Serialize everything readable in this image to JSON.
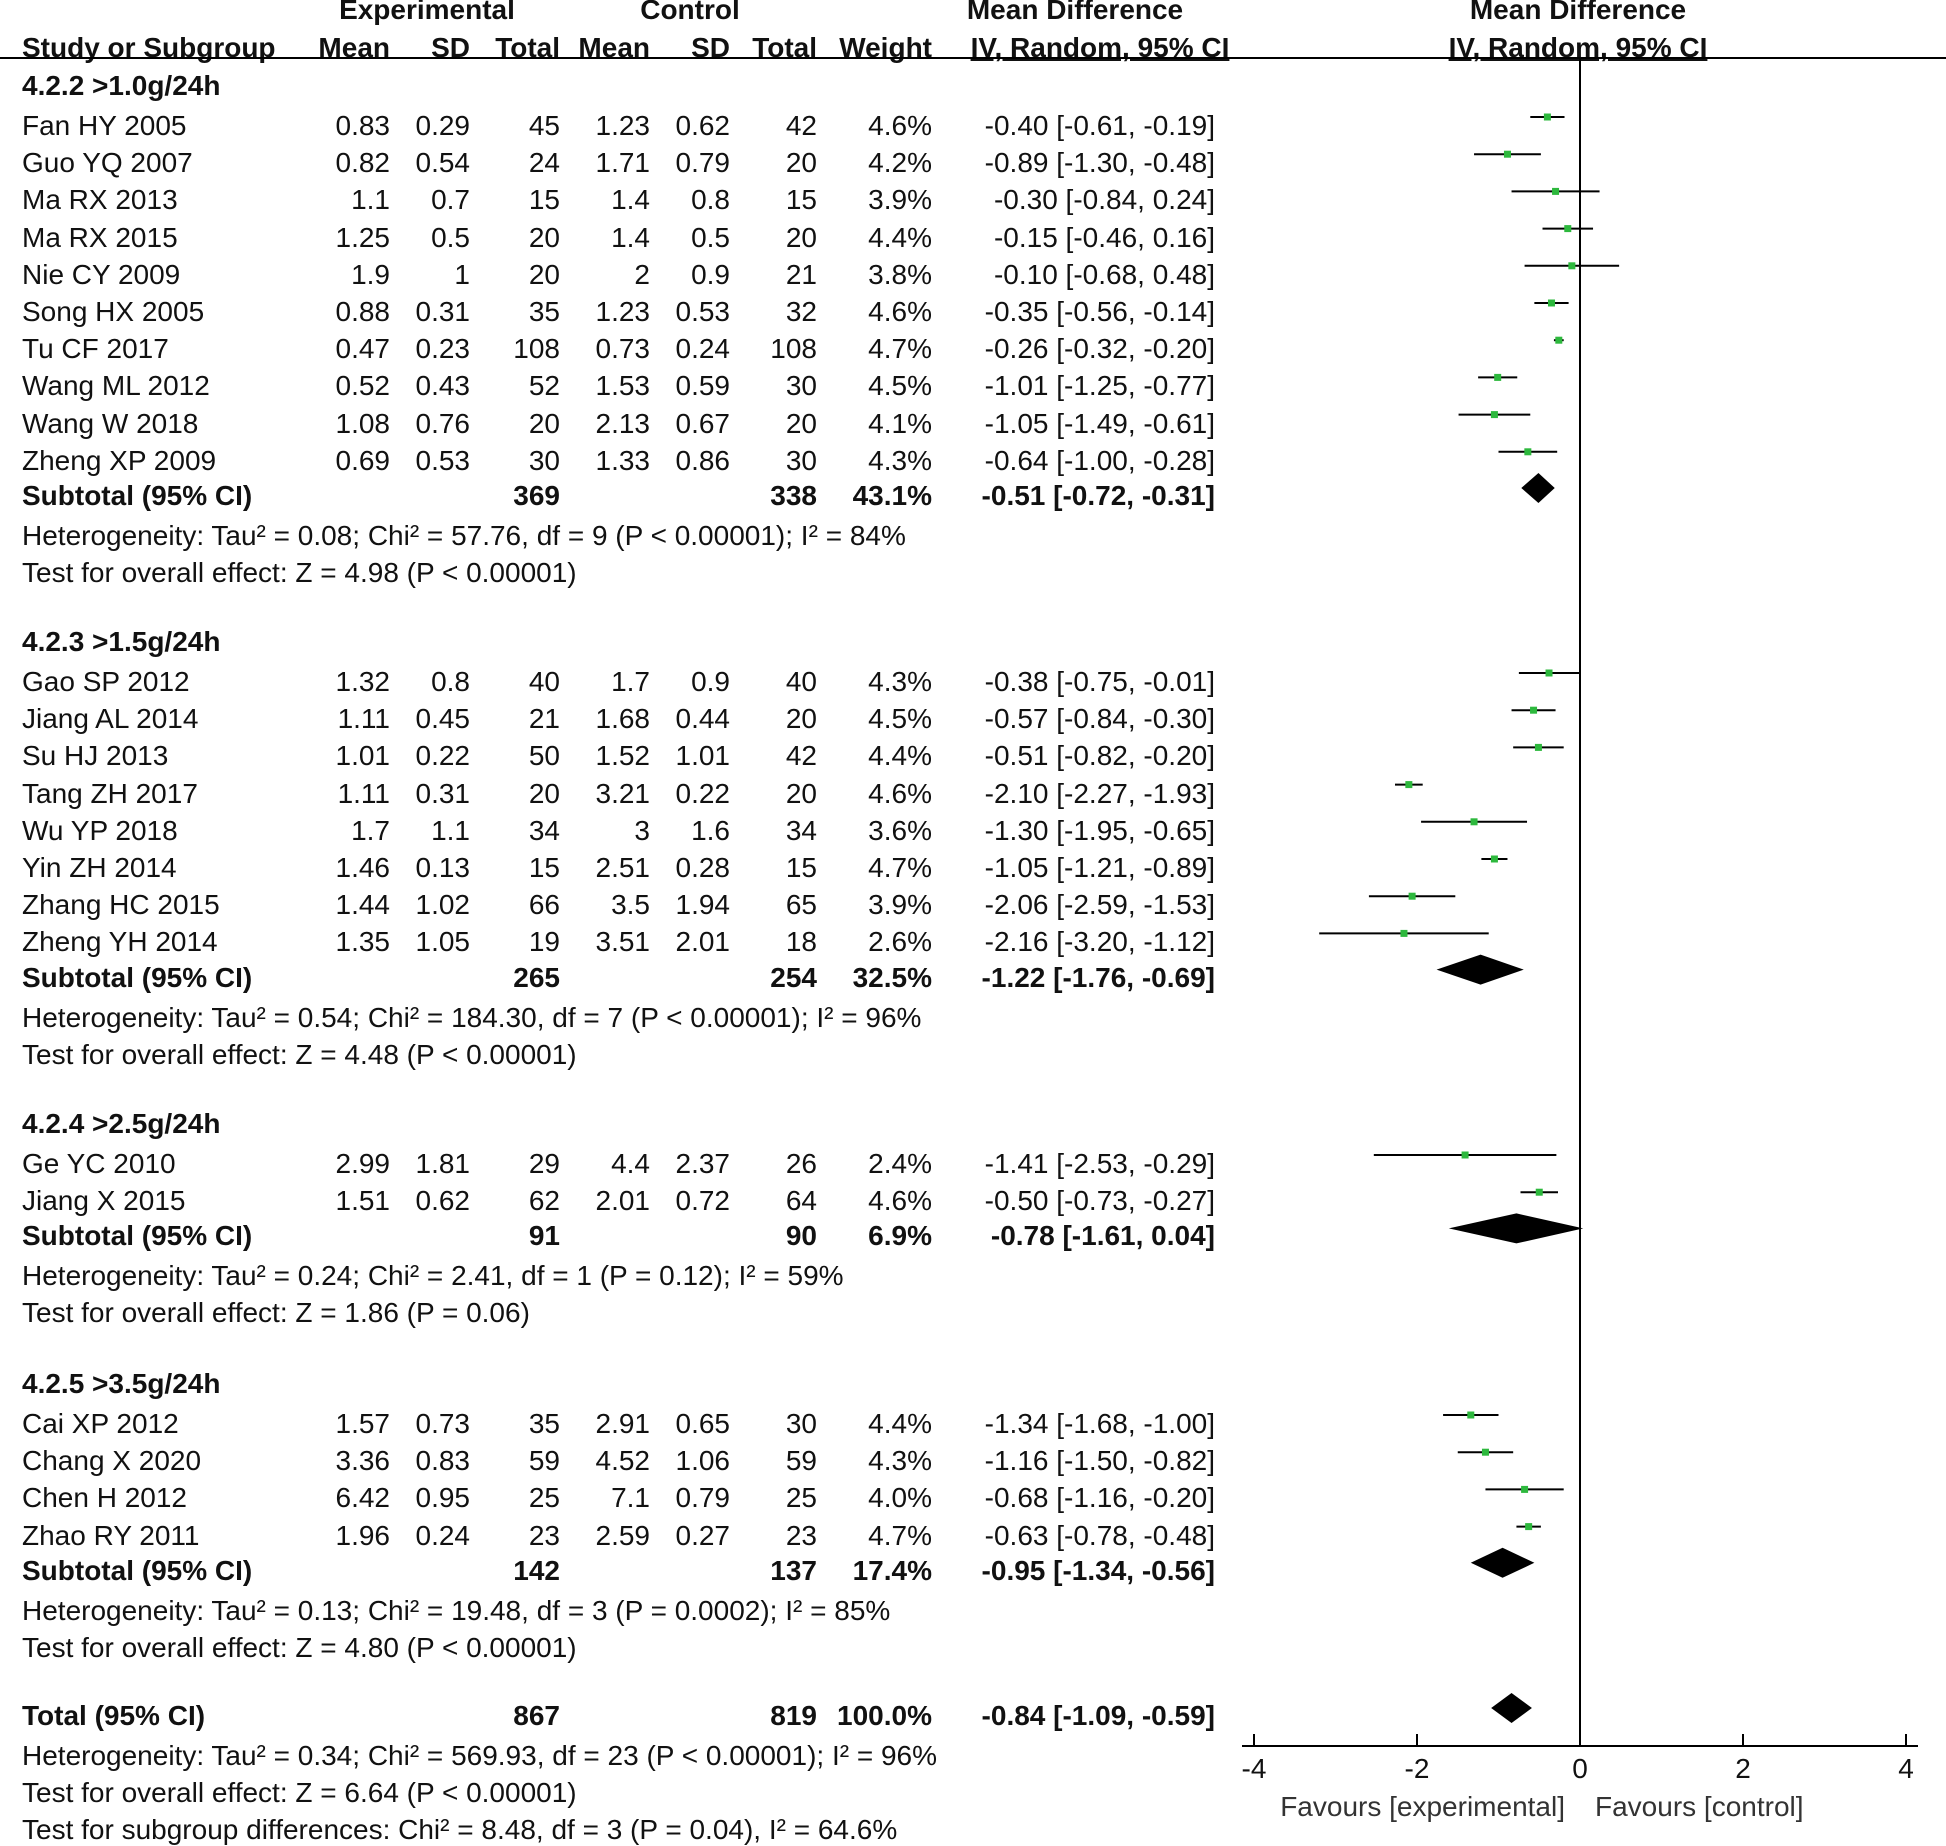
{
  "headers": {
    "experimental": "Experimental",
    "control": "Control",
    "mean_difference": "Mean Difference",
    "mean_difference_plot": "Mean Difference",
    "study_or_subgroup": "Study or Subgroup",
    "mean_e": "Mean",
    "sd_e": "SD",
    "total_e": "Total",
    "mean_c": "Mean",
    "sd_c": "SD",
    "total_c": "Total",
    "weight": "Weight",
    "method": "IV, Random, 95% CI",
    "method_plot": "IV, Random, 95% CI"
  },
  "subgroups": [
    {
      "title": "4.2.2 >1.0g/24h",
      "studies": [
        {
          "name": "Fan HY 2005",
          "mean_e": "0.83",
          "sd_e": "0.29",
          "total_e": "45",
          "mean_c": "1.23",
          "sd_c": "0.62",
          "total_c": "42",
          "weight": "4.6%",
          "ci": "-0.40 [-0.61, -0.19]",
          "md": -0.4,
          "lo": -0.61,
          "hi": -0.19
        },
        {
          "name": "Guo YQ 2007",
          "mean_e": "0.82",
          "sd_e": "0.54",
          "total_e": "24",
          "mean_c": "1.71",
          "sd_c": "0.79",
          "total_c": "20",
          "weight": "4.2%",
          "ci": "-0.89 [-1.30, -0.48]",
          "md": -0.89,
          "lo": -1.3,
          "hi": -0.48
        },
        {
          "name": "Ma RX 2013",
          "mean_e": "1.1",
          "sd_e": "0.7",
          "total_e": "15",
          "mean_c": "1.4",
          "sd_c": "0.8",
          "total_c": "15",
          "weight": "3.9%",
          "ci": "-0.30 [-0.84, 0.24]",
          "md": -0.3,
          "lo": -0.84,
          "hi": 0.24
        },
        {
          "name": "Ma RX 2015",
          "mean_e": "1.25",
          "sd_e": "0.5",
          "total_e": "20",
          "mean_c": "1.4",
          "sd_c": "0.5",
          "total_c": "20",
          "weight": "4.4%",
          "ci": "-0.15 [-0.46, 0.16]",
          "md": -0.15,
          "lo": -0.46,
          "hi": 0.16
        },
        {
          "name": "Nie CY 2009",
          "mean_e": "1.9",
          "sd_e": "1",
          "total_e": "20",
          "mean_c": "2",
          "sd_c": "0.9",
          "total_c": "21",
          "weight": "3.8%",
          "ci": "-0.10 [-0.68, 0.48]",
          "md": -0.1,
          "lo": -0.68,
          "hi": 0.48
        },
        {
          "name": "Song HX 2005",
          "mean_e": "0.88",
          "sd_e": "0.31",
          "total_e": "35",
          "mean_c": "1.23",
          "sd_c": "0.53",
          "total_c": "32",
          "weight": "4.6%",
          "ci": "-0.35 [-0.56, -0.14]",
          "md": -0.35,
          "lo": -0.56,
          "hi": -0.14
        },
        {
          "name": "Tu CF 2017",
          "mean_e": "0.47",
          "sd_e": "0.23",
          "total_e": "108",
          "mean_c": "0.73",
          "sd_c": "0.24",
          "total_c": "108",
          "weight": "4.7%",
          "ci": "-0.26 [-0.32, -0.20]",
          "md": -0.26,
          "lo": -0.32,
          "hi": -0.2
        },
        {
          "name": "Wang ML 2012",
          "mean_e": "0.52",
          "sd_e": "0.43",
          "total_e": "52",
          "mean_c": "1.53",
          "sd_c": "0.59",
          "total_c": "30",
          "weight": "4.5%",
          "ci": "-1.01 [-1.25, -0.77]",
          "md": -1.01,
          "lo": -1.25,
          "hi": -0.77
        },
        {
          "name": "Wang W 2018",
          "mean_e": "1.08",
          "sd_e": "0.76",
          "total_e": "20",
          "mean_c": "2.13",
          "sd_c": "0.67",
          "total_c": "20",
          "weight": "4.1%",
          "ci": "-1.05 [-1.49, -0.61]",
          "md": -1.05,
          "lo": -1.49,
          "hi": -0.61
        },
        {
          "name": "Zheng XP  2009",
          "mean_e": "0.69",
          "sd_e": "0.53",
          "total_e": "30",
          "mean_c": "1.33",
          "sd_c": "0.86",
          "total_c": "30",
          "weight": "4.3%",
          "ci": "-0.64 [-1.00, -0.28]",
          "md": -0.64,
          "lo": -1.0,
          "hi": -0.28
        }
      ],
      "subtotal": {
        "label": "Subtotal (95% CI)",
        "total_e": "369",
        "total_c": "338",
        "weight": "43.1%",
        "ci": "-0.51 [-0.72, -0.31]",
        "md": -0.51,
        "lo": -0.72,
        "hi": -0.31
      },
      "heterogeneity": "Heterogeneity: Tau² = 0.08; Chi² = 57.76, df = 9 (P < 0.00001); I² = 84%",
      "overall": "Test for overall effect: Z = 4.98 (P < 0.00001)"
    },
    {
      "title": "4.2.3 >1.5g/24h",
      "studies": [
        {
          "name": "Gao SP 2012",
          "mean_e": "1.32",
          "sd_e": "0.8",
          "total_e": "40",
          "mean_c": "1.7",
          "sd_c": "0.9",
          "total_c": "40",
          "weight": "4.3%",
          "ci": "-0.38 [-0.75, -0.01]",
          "md": -0.38,
          "lo": -0.75,
          "hi": -0.01
        },
        {
          "name": "Jiang AL 2014",
          "mean_e": "1.11",
          "sd_e": "0.45",
          "total_e": "21",
          "mean_c": "1.68",
          "sd_c": "0.44",
          "total_c": "20",
          "weight": "4.5%",
          "ci": "-0.57 [-0.84, -0.30]",
          "md": -0.57,
          "lo": -0.84,
          "hi": -0.3
        },
        {
          "name": "Su HJ 2013",
          "mean_e": "1.01",
          "sd_e": "0.22",
          "total_e": "50",
          "mean_c": "1.52",
          "sd_c": "1.01",
          "total_c": "42",
          "weight": "4.4%",
          "ci": "-0.51 [-0.82, -0.20]",
          "md": -0.51,
          "lo": -0.82,
          "hi": -0.2
        },
        {
          "name": "Tang ZH 2017",
          "mean_e": "1.11",
          "sd_e": "0.31",
          "total_e": "20",
          "mean_c": "3.21",
          "sd_c": "0.22",
          "total_c": "20",
          "weight": "4.6%",
          "ci": "-2.10 [-2.27, -1.93]",
          "md": -2.1,
          "lo": -2.27,
          "hi": -1.93
        },
        {
          "name": "Wu YP 2018",
          "mean_e": "1.7",
          "sd_e": "1.1",
          "total_e": "34",
          "mean_c": "3",
          "sd_c": "1.6",
          "total_c": "34",
          "weight": "3.6%",
          "ci": "-1.30 [-1.95, -0.65]",
          "md": -1.3,
          "lo": -1.95,
          "hi": -0.65
        },
        {
          "name": "Yin ZH 2014",
          "mean_e": "1.46",
          "sd_e": "0.13",
          "total_e": "15",
          "mean_c": "2.51",
          "sd_c": "0.28",
          "total_c": "15",
          "weight": "4.7%",
          "ci": "-1.05 [-1.21, -0.89]",
          "md": -1.05,
          "lo": -1.21,
          "hi": -0.89
        },
        {
          "name": "Zhang HC 2015",
          "mean_e": "1.44",
          "sd_e": "1.02",
          "total_e": "66",
          "mean_c": "3.5",
          "sd_c": "1.94",
          "total_c": "65",
          "weight": "3.9%",
          "ci": "-2.06 [-2.59, -1.53]",
          "md": -2.06,
          "lo": -2.59,
          "hi": -1.53
        },
        {
          "name": "Zheng YH 2014",
          "mean_e": "1.35",
          "sd_e": "1.05",
          "total_e": "19",
          "mean_c": "3.51",
          "sd_c": "2.01",
          "total_c": "18",
          "weight": "2.6%",
          "ci": "-2.16 [-3.20, -1.12]",
          "md": -2.16,
          "lo": -3.2,
          "hi": -1.12
        }
      ],
      "subtotal": {
        "label": "Subtotal (95% CI)",
        "total_e": "265",
        "total_c": "254",
        "weight": "32.5%",
        "ci": "-1.22 [-1.76, -0.69]",
        "md": -1.22,
        "lo": -1.76,
        "hi": -0.69
      },
      "heterogeneity": "Heterogeneity: Tau² = 0.54; Chi² = 184.30, df = 7 (P < 0.00001); I² = 96%",
      "overall": "Test for overall effect: Z = 4.48 (P < 0.00001)"
    },
    {
      "title": "4.2.4 >2.5g/24h",
      "studies": [
        {
          "name": "Ge YC 2010",
          "mean_e": "2.99",
          "sd_e": "1.81",
          "total_e": "29",
          "mean_c": "4.4",
          "sd_c": "2.37",
          "total_c": "26",
          "weight": "2.4%",
          "ci": "-1.41 [-2.53, -0.29]",
          "md": -1.41,
          "lo": -2.53,
          "hi": -0.29
        },
        {
          "name": "Jiang X 2015",
          "mean_e": "1.51",
          "sd_e": "0.62",
          "total_e": "62",
          "mean_c": "2.01",
          "sd_c": "0.72",
          "total_c": "64",
          "weight": "4.6%",
          "ci": "-0.50 [-0.73, -0.27]",
          "md": -0.5,
          "lo": -0.73,
          "hi": -0.27
        }
      ],
      "subtotal": {
        "label": "Subtotal (95% CI)",
        "total_e": "91",
        "total_c": "90",
        "weight": "6.9%",
        "ci": "-0.78 [-1.61, 0.04]",
        "md": -0.78,
        "lo": -1.61,
        "hi": 0.04
      },
      "heterogeneity": "Heterogeneity: Tau² = 0.24; Chi² = 2.41, df = 1 (P = 0.12); I² = 59%",
      "overall": "Test for overall effect: Z = 1.86 (P = 0.06)"
    },
    {
      "title": "4.2.5 >3.5g/24h",
      "studies": [
        {
          "name": "Cai XP 2012",
          "mean_e": "1.57",
          "sd_e": "0.73",
          "total_e": "35",
          "mean_c": "2.91",
          "sd_c": "0.65",
          "total_c": "30",
          "weight": "4.4%",
          "ci": "-1.34 [-1.68, -1.00]",
          "md": -1.34,
          "lo": -1.68,
          "hi": -1.0
        },
        {
          "name": "Chang X 2020",
          "mean_e": "3.36",
          "sd_e": "0.83",
          "total_e": "59",
          "mean_c": "4.52",
          "sd_c": "1.06",
          "total_c": "59",
          "weight": "4.3%",
          "ci": "-1.16 [-1.50, -0.82]",
          "md": -1.16,
          "lo": -1.5,
          "hi": -0.82
        },
        {
          "name": "Chen H 2012",
          "mean_e": "6.42",
          "sd_e": "0.95",
          "total_e": "25",
          "mean_c": "7.1",
          "sd_c": "0.79",
          "total_c": "25",
          "weight": "4.0%",
          "ci": "-0.68 [-1.16, -0.20]",
          "md": -0.68,
          "lo": -1.16,
          "hi": -0.2
        },
        {
          "name": "Zhao RY 2011",
          "mean_e": "1.96",
          "sd_e": "0.24",
          "total_e": "23",
          "mean_c": "2.59",
          "sd_c": "0.27",
          "total_c": "23",
          "weight": "4.7%",
          "ci": "-0.63 [-0.78, -0.48]",
          "md": -0.63,
          "lo": -0.78,
          "hi": -0.48
        }
      ],
      "subtotal": {
        "label": "Subtotal (95% CI)",
        "total_e": "142",
        "total_c": "137",
        "weight": "17.4%",
        "ci": "-0.95 [-1.34, -0.56]",
        "md": -0.95,
        "lo": -1.34,
        "hi": -0.56
      },
      "heterogeneity": "Heterogeneity: Tau² = 0.13; Chi² = 19.48, df = 3 (P = 0.0002); I² = 85%",
      "overall": "Test for overall effect: Z = 4.80 (P < 0.00001)"
    }
  ],
  "total": {
    "label": "Total (95% CI)",
    "total_e": "867",
    "total_c": "819",
    "weight": "100.0%",
    "ci": "-0.84 [-1.09, -0.59]",
    "md": -0.84,
    "lo": -1.09,
    "hi": -0.59,
    "heterogeneity": "Heterogeneity: Tau² = 0.34; Chi² = 569.93, df = 23 (P < 0.00001); I² = 96%",
    "overall": "Test for overall effect: Z = 6.64 (P < 0.00001)",
    "subgroup_diff": "Test for subgroup differences: Chi² = 8.48, df = 3 (P = 0.04), I² = 64.6%"
  },
  "axis": {
    "ticks": [
      -4,
      -2,
      0,
      2,
      4
    ],
    "tick_labels": [
      "-4",
      "-2",
      "0",
      "2",
      "4"
    ],
    "favours_left": "Favours [experimental]",
    "favours_right": "Favours [control]"
  },
  "colors": {
    "marker": "#2db83d",
    "line": "#000000",
    "diamond": "#000000"
  },
  "chart_data": {
    "type": "forest",
    "title": "",
    "xlabel": "Mean Difference, IV, Random, 95% CI",
    "xlim": [
      -4,
      4
    ],
    "reference_line": 0,
    "series": [
      {
        "name": "4.2.2 >1.0g/24h",
        "studies": [
          "Fan HY 2005",
          "Guo YQ 2007",
          "Ma RX 2013",
          "Ma RX 2015",
          "Nie CY 2009",
          "Song HX 2005",
          "Tu CF 2017",
          "Wang ML 2012",
          "Wang W 2018",
          "Zheng XP  2009"
        ],
        "md": [
          -0.4,
          -0.89,
          -0.3,
          -0.15,
          -0.1,
          -0.35,
          -0.26,
          -1.01,
          -1.05,
          -0.64
        ],
        "pooled": -0.51
      },
      {
        "name": "4.2.3 >1.5g/24h",
        "studies": [
          "Gao SP 2012",
          "Jiang AL 2014",
          "Su HJ 2013",
          "Tang ZH 2017",
          "Wu YP 2018",
          "Yin ZH 2014",
          "Zhang HC 2015",
          "Zheng YH 2014"
        ],
        "md": [
          -0.38,
          -0.57,
          -0.51,
          -2.1,
          -1.3,
          -1.05,
          -2.06,
          -2.16
        ],
        "pooled": -1.22
      },
      {
        "name": "4.2.4 >2.5g/24h",
        "studies": [
          "Ge YC 2010",
          "Jiang X 2015"
        ],
        "md": [
          -1.41,
          -0.5
        ],
        "pooled": -0.78
      },
      {
        "name": "4.2.5 >3.5g/24h",
        "studies": [
          "Cai XP 2012",
          "Chang X 2020",
          "Chen H 2012",
          "Zhao RY 2011"
        ],
        "md": [
          -1.34,
          -1.16,
          -0.68,
          -0.63
        ],
        "pooled": -0.95
      }
    ],
    "overall": -0.84
  }
}
